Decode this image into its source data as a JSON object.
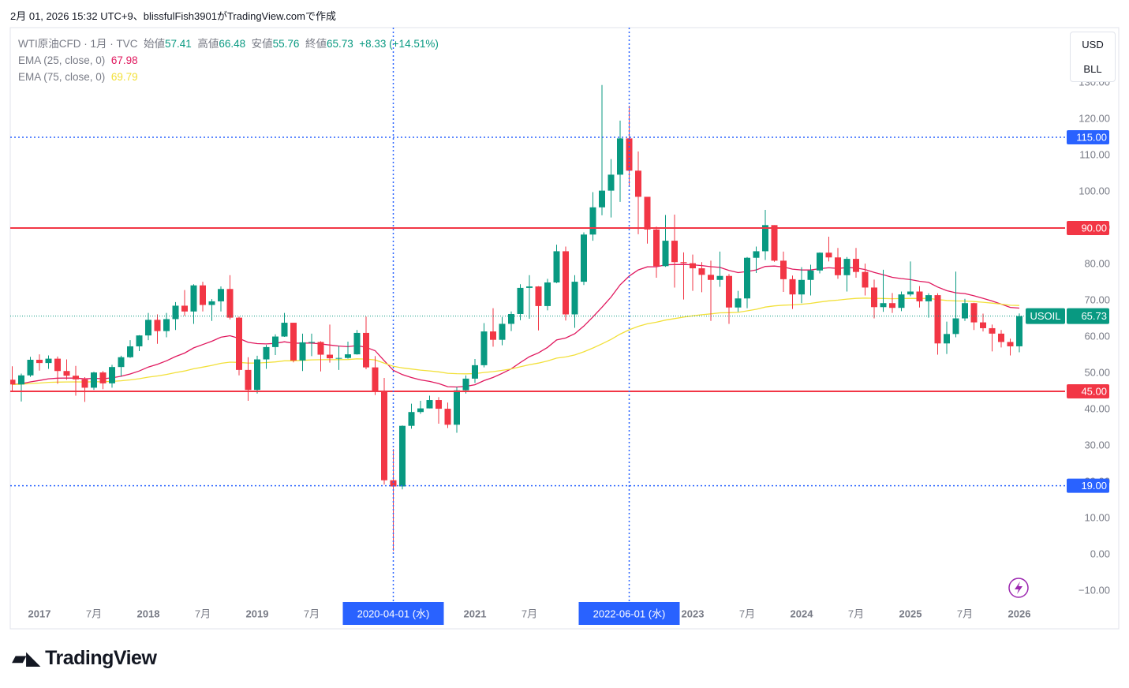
{
  "header": "2月 01, 2026 15:32 UTC+9、blissfulFish3901がTradingView.comで作成",
  "logo": "TradingView",
  "chart_data": {
    "type": "candlestick",
    "symbol": "WTI原油CFD · 1月 · TVC",
    "ohlc_labels": [
      "始値",
      "高値",
      "安値",
      "終値"
    ],
    "change_label": "+8.33 (+14.51%)",
    "currency": "USD",
    "unit": "BLL",
    "ticker": "USOIL",
    "up_color": "#089981",
    "down_color": "#f23645",
    "indicators": [
      {
        "label": "EMA (25, close, 0)",
        "period": 25,
        "value": 67.98,
        "color": "#e0185e"
      },
      {
        "label": "EMA (75, close, 0)",
        "period": 75,
        "value": 69.79,
        "color": "#f2e03a"
      }
    ],
    "ylim": [
      -20,
      145
    ],
    "yticks": [
      {
        "value": -10,
        "label": "−10.00"
      },
      {
        "value": 0,
        "label": "0.00"
      },
      {
        "value": 10,
        "label": "10.00"
      },
      {
        "value": 20,
        "label": "20.00"
      },
      {
        "value": 30,
        "label": "30.00"
      },
      {
        "value": 40,
        "label": "40.00"
      },
      {
        "value": 50,
        "label": "50.00"
      },
      {
        "value": 60,
        "label": "60.00"
      },
      {
        "value": 70,
        "label": "70.00"
      },
      {
        "value": 80,
        "label": "80.00"
      },
      {
        "value": 90,
        "label": "90.00"
      },
      {
        "value": 100,
        "label": "100.00"
      },
      {
        "value": 110,
        "label": "110.00"
      },
      {
        "value": 120,
        "label": "120.00"
      },
      {
        "value": 130,
        "label": "130.00"
      }
    ],
    "xticks": [
      {
        "value": 3,
        "label": "2017"
      },
      {
        "value": 9,
        "label": "7月"
      },
      {
        "value": 15,
        "label": "2018"
      },
      {
        "value": 21,
        "label": "7月"
      },
      {
        "value": 27,
        "label": "2019"
      },
      {
        "value": 33,
        "label": "7月"
      },
      {
        "value": 51,
        "label": "2021"
      },
      {
        "value": 57,
        "label": "7月"
      },
      {
        "value": 75,
        "label": "2023"
      },
      {
        "value": 81,
        "label": "7月"
      },
      {
        "value": 87,
        "label": "2024"
      },
      {
        "value": 93,
        "label": "7月"
      },
      {
        "value": 99,
        "label": "2025"
      },
      {
        "value": 105,
        "label": "7月"
      },
      {
        "value": 111,
        "label": "2026"
      }
    ],
    "hlines": [
      {
        "value": 115,
        "label": "115.00",
        "color": "#2962ff",
        "style": "dotted"
      },
      {
        "value": 90,
        "label": "90.00",
        "color": "#f23645",
        "style": "solid"
      },
      {
        "value": 45,
        "label": "45.00",
        "color": "#f23645",
        "style": "solid"
      },
      {
        "value": 19,
        "label": "19.00",
        "color": "#2962ff",
        "style": "dotted"
      }
    ],
    "vlines": [
      {
        "value": 42,
        "label": "2020-04-01 (水)",
        "color": "#2962ff"
      },
      {
        "value": 68,
        "label": "2022-06-01 (水)",
        "color": "#2962ff"
      }
    ],
    "candles": [
      [
        48.2,
        51.9,
        45.0,
        46.9
      ],
      [
        46.9,
        49.9,
        42.2,
        49.4
      ],
      [
        49.4,
        54.5,
        49.0,
        53.7
      ],
      [
        53.7,
        55.2,
        50.7,
        52.8
      ],
      [
        52.8,
        54.9,
        51.2,
        54.0
      ],
      [
        54.0,
        54.6,
        47.1,
        50.6
      ],
      [
        50.6,
        53.8,
        48.2,
        49.3
      ],
      [
        49.3,
        52.0,
        43.8,
        48.3
      ],
      [
        48.3,
        48.9,
        42.1,
        46.0
      ],
      [
        46.0,
        50.4,
        45.4,
        50.2
      ],
      [
        50.2,
        50.6,
        45.6,
        47.2
      ],
      [
        47.2,
        52.3,
        46.0,
        51.7
      ],
      [
        51.7,
        54.8,
        49.1,
        54.4
      ],
      [
        54.4,
        59.1,
        54.2,
        57.4
      ],
      [
        57.4,
        60.5,
        56.1,
        60.4
      ],
      [
        60.4,
        66.6,
        59.1,
        64.7
      ],
      [
        64.7,
        66.2,
        58.1,
        61.6
      ],
      [
        61.6,
        66.6,
        59.9,
        64.9
      ],
      [
        64.9,
        69.6,
        61.9,
        68.6
      ],
      [
        68.6,
        72.9,
        65.8,
        67.0
      ],
      [
        67.0,
        74.5,
        63.6,
        74.2
      ],
      [
        74.2,
        75.2,
        67.0,
        68.8
      ],
      [
        68.8,
        70.4,
        64.4,
        69.8
      ],
      [
        69.8,
        73.9,
        67.0,
        73.2
      ],
      [
        73.2,
        77.0,
        64.8,
        65.3
      ],
      [
        65.3,
        65.6,
        49.4,
        50.9
      ],
      [
        50.9,
        54.4,
        42.4,
        45.4
      ],
      [
        45.4,
        54.8,
        44.4,
        53.8
      ],
      [
        53.8,
        57.8,
        51.2,
        57.2
      ],
      [
        57.2,
        60.7,
        55.0,
        60.1
      ],
      [
        60.1,
        66.6,
        60.0,
        63.9
      ],
      [
        63.9,
        63.9,
        53.0,
        53.5
      ],
      [
        53.5,
        60.9,
        50.6,
        58.5
      ],
      [
        58.5,
        60.9,
        54.7,
        58.6
      ],
      [
        58.6,
        58.8,
        50.5,
        55.1
      ],
      [
        55.1,
        63.4,
        52.9,
        54.1
      ],
      [
        54.1,
        57.5,
        50.9,
        54.2
      ],
      [
        54.2,
        58.7,
        54.0,
        55.2
      ],
      [
        55.2,
        61.9,
        55.1,
        61.1
      ],
      [
        61.1,
        65.6,
        51.1,
        51.6
      ],
      [
        51.6,
        54.7,
        44.0,
        44.8
      ],
      [
        44.8,
        48.7,
        19.3,
        20.5
      ],
      [
        20.5,
        29.1,
        1.0,
        18.8
      ],
      [
        18.8,
        35.6,
        18.0,
        35.5
      ],
      [
        35.5,
        41.6,
        34.7,
        39.3
      ],
      [
        39.3,
        42.4,
        38.8,
        40.3
      ],
      [
        40.3,
        43.8,
        40.3,
        42.6
      ],
      [
        42.6,
        43.4,
        36.1,
        40.2
      ],
      [
        40.2,
        41.9,
        34.9,
        35.8
      ],
      [
        35.8,
        46.2,
        33.6,
        45.3
      ],
      [
        45.3,
        49.4,
        44.4,
        48.5
      ],
      [
        48.5,
        53.9,
        47.3,
        52.2
      ],
      [
        52.2,
        63.8,
        51.6,
        61.5
      ],
      [
        61.5,
        67.9,
        57.3,
        59.2
      ],
      [
        59.2,
        65.5,
        57.7,
        63.6
      ],
      [
        63.6,
        67.0,
        61.6,
        66.3
      ],
      [
        66.3,
        74.5,
        64.6,
        73.5
      ],
      [
        73.5,
        77.0,
        65.0,
        73.9
      ],
      [
        73.9,
        74.0,
        61.8,
        68.5
      ],
      [
        68.5,
        76.0,
        67.3,
        75.0
      ],
      [
        75.0,
        85.4,
        74.8,
        83.6
      ],
      [
        83.6,
        84.9,
        64.5,
        66.2
      ],
      [
        66.2,
        77.0,
        62.5,
        75.2
      ],
      [
        75.2,
        88.8,
        74.3,
        88.2
      ],
      [
        88.2,
        99.9,
        86.5,
        95.7
      ],
      [
        95.7,
        129.4,
        93.5,
        100.3
      ],
      [
        100.3,
        109.0,
        92.9,
        104.7
      ],
      [
        104.7,
        119.6,
        97.2,
        114.7
      ],
      [
        114.7,
        123.7,
        101.5,
        105.8
      ],
      [
        105.8,
        111.1,
        88.3,
        98.6
      ],
      [
        98.6,
        98.6,
        85.7,
        89.6
      ],
      [
        89.6,
        90.4,
        76.3,
        79.5
      ],
      [
        79.5,
        93.6,
        79.3,
        86.5
      ],
      [
        86.5,
        93.7,
        73.6,
        80.6
      ],
      [
        80.6,
        83.3,
        70.3,
        80.3
      ],
      [
        80.3,
        82.7,
        72.7,
        78.9
      ],
      [
        78.9,
        80.6,
        72.3,
        77.1
      ],
      [
        77.1,
        81.0,
        64.4,
        75.7
      ],
      [
        75.7,
        83.5,
        73.8,
        76.8
      ],
      [
        76.8,
        77.3,
        63.6,
        68.1
      ],
      [
        68.1,
        72.7,
        66.9,
        70.6
      ],
      [
        70.6,
        82.0,
        67.9,
        81.8
      ],
      [
        81.8,
        84.9,
        77.6,
        83.6
      ],
      [
        83.6,
        95.0,
        81.2,
        90.8
      ],
      [
        90.8,
        90.8,
        80.7,
        81.0
      ],
      [
        81.0,
        83.5,
        72.4,
        75.9
      ],
      [
        75.9,
        76.9,
        67.7,
        71.7
      ],
      [
        71.7,
        79.2,
        69.3,
        75.7
      ],
      [
        75.7,
        79.9,
        71.4,
        78.3
      ],
      [
        78.3,
        83.3,
        77.5,
        83.2
      ],
      [
        83.2,
        87.6,
        80.8,
        81.9
      ],
      [
        81.9,
        84.5,
        76.0,
        77.0
      ],
      [
        77.0,
        82.0,
        72.5,
        81.5
      ],
      [
        81.5,
        84.5,
        76.3,
        77.9
      ],
      [
        77.9,
        80.2,
        71.4,
        73.6
      ],
      [
        73.6,
        75.8,
        65.1,
        68.2
      ],
      [
        68.2,
        78.5,
        66.9,
        69.3
      ],
      [
        69.3,
        72.1,
        66.6,
        68.0
      ],
      [
        68.0,
        72.5,
        67.1,
        71.7
      ],
      [
        71.7,
        80.8,
        71.2,
        72.5
      ],
      [
        72.5,
        74.0,
        68.1,
        69.8
      ],
      [
        69.8,
        72.0,
        65.3,
        71.5
      ],
      [
        71.5,
        72.0,
        55.1,
        58.2
      ],
      [
        58.2,
        64.2,
        55.3,
        60.8
      ],
      [
        60.8,
        78.0,
        59.9,
        65.1
      ],
      [
        65.1,
        70.5,
        64.4,
        69.3
      ],
      [
        69.3,
        69.4,
        61.9,
        64.0
      ],
      [
        64.0,
        66.4,
        61.5,
        62.4
      ],
      [
        62.4,
        63.4,
        56.0,
        60.9
      ],
      [
        60.9,
        61.9,
        57.1,
        58.6
      ],
      [
        58.6,
        59.5,
        54.9,
        57.4
      ],
      [
        57.41,
        66.48,
        55.76,
        65.73
      ]
    ]
  }
}
